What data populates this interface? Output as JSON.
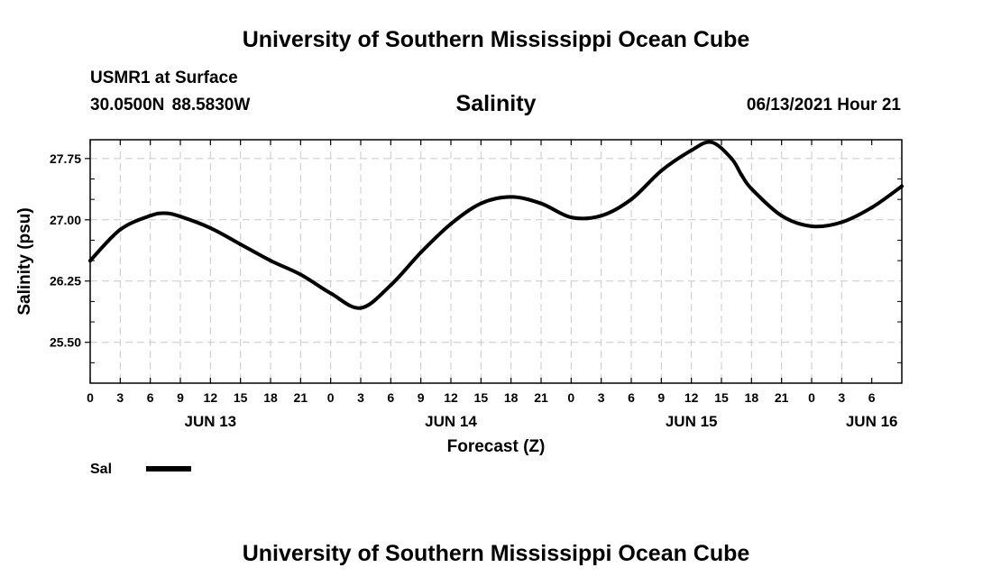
{
  "header": {
    "title": "University of Southern Mississippi Ocean Cube",
    "station": "USMR1 at Surface",
    "coordinates": "30.0500N  88.5830W",
    "plot_title": "Salinity",
    "datetime": "06/13/2021 Hour 21"
  },
  "footer": {
    "title": "University of Southern Mississippi Ocean Cube"
  },
  "chart_data": {
    "type": "line",
    "title": "Salinity",
    "xlabel": "Forecast (Z)",
    "ylabel": "Salinity (psu)",
    "ylim": [
      25.0,
      27.98
    ],
    "xlim": [
      0,
      81
    ],
    "x_unit": "hours since JUN 13 00Z",
    "grid": true,
    "y_ticks": [
      {
        "value": 25.5,
        "label": "25.50"
      },
      {
        "value": 26.25,
        "label": "26.25"
      },
      {
        "value": 27.0,
        "label": "27.00"
      },
      {
        "value": 27.75,
        "label": "27.75"
      }
    ],
    "x_ticks": [
      "0",
      "3",
      "6",
      "9",
      "12",
      "15",
      "18",
      "21",
      "0",
      "3",
      "6",
      "9",
      "12",
      "15",
      "18",
      "21",
      "0",
      "3",
      "6",
      "9",
      "12",
      "15",
      "18",
      "21",
      "0",
      "3",
      "6"
    ],
    "day_labels": [
      {
        "label": "JUN 13",
        "hour": 12
      },
      {
        "label": "JUN 14",
        "hour": 36
      },
      {
        "label": "JUN 15",
        "hour": 60
      },
      {
        "label": "JUN 16",
        "hour": 78
      }
    ],
    "legend": [
      {
        "name": "Sal",
        "color": "#000000"
      }
    ],
    "series": [
      {
        "name": "Sal",
        "color": "#000000",
        "x": [
          0,
          3,
          6,
          7.5,
          9,
          12,
          15,
          18,
          21,
          24,
          27,
          30,
          33,
          36,
          39,
          42,
          45,
          48,
          51,
          54,
          57,
          60,
          62,
          64,
          65,
          66,
          69,
          72,
          75,
          78,
          81
        ],
        "y": [
          26.5,
          26.88,
          27.05,
          27.08,
          27.04,
          26.9,
          26.7,
          26.5,
          26.33,
          26.1,
          25.92,
          26.2,
          26.6,
          26.95,
          27.2,
          27.28,
          27.2,
          27.03,
          27.05,
          27.25,
          27.6,
          27.85,
          27.95,
          27.75,
          27.55,
          27.38,
          27.05,
          26.92,
          26.97,
          27.15,
          27.41
        ]
      }
    ]
  }
}
